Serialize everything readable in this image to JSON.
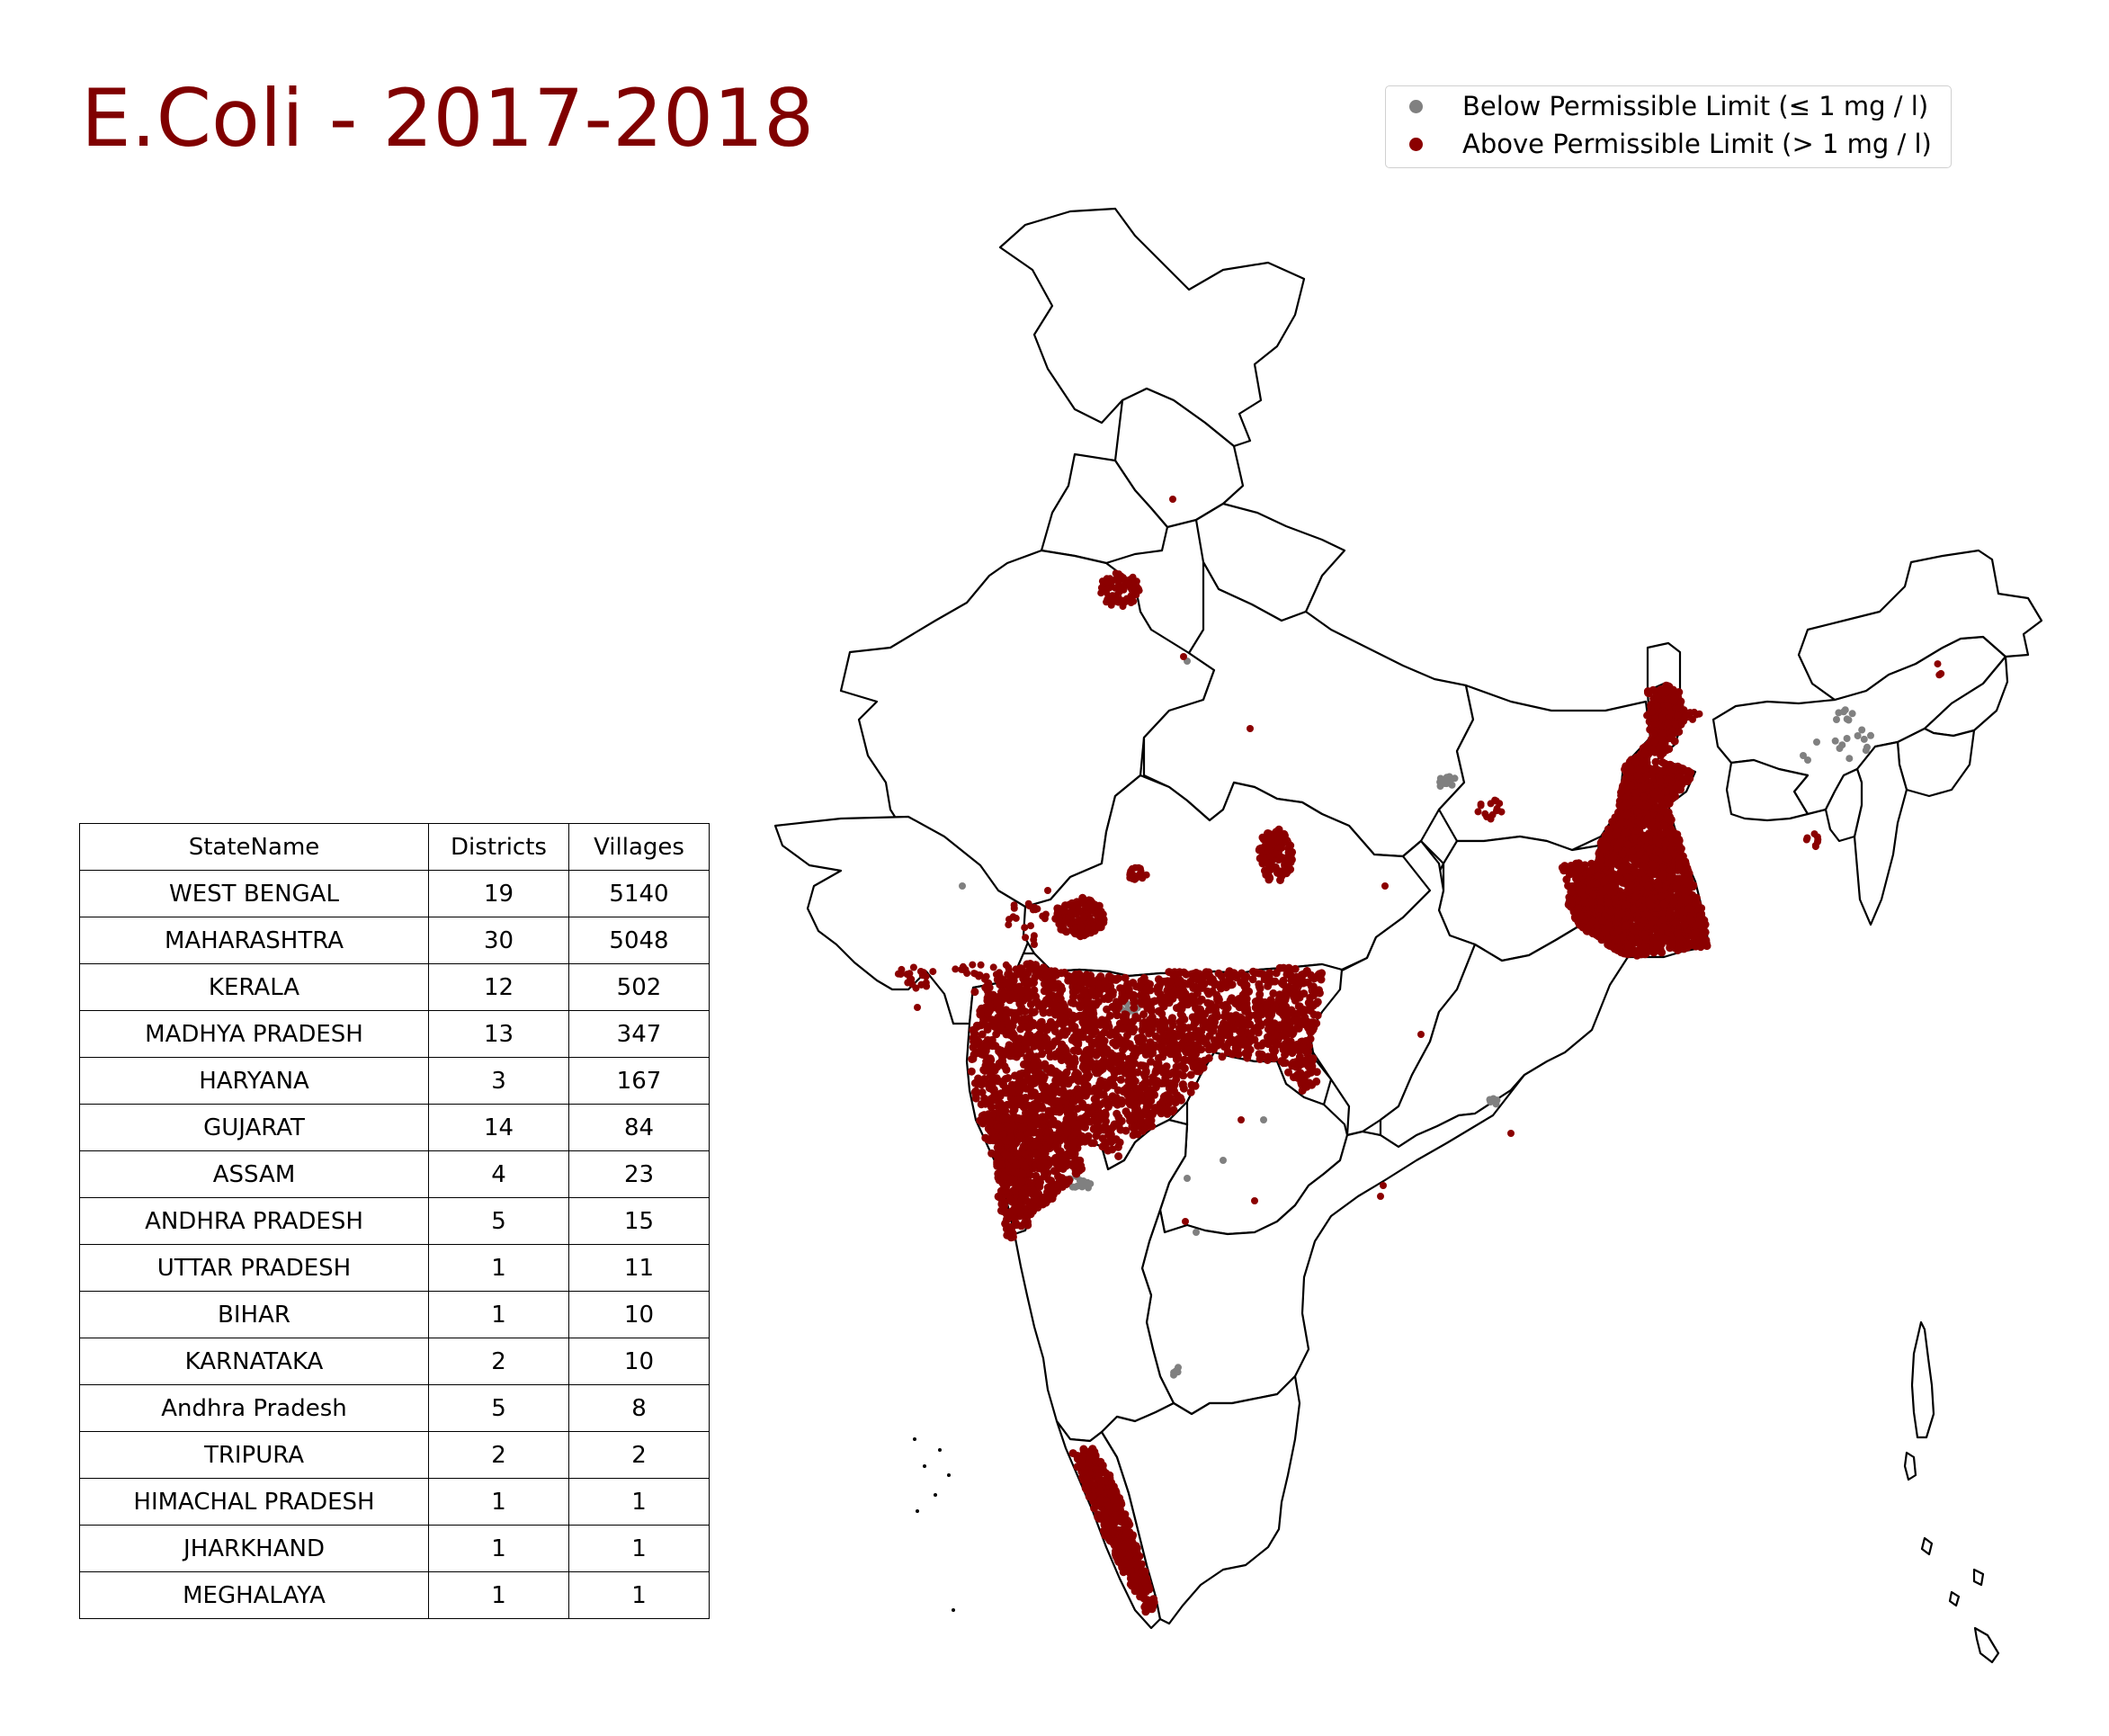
{
  "title": "E.Coli - 2017-2018",
  "colors": {
    "title": "#800000",
    "above": "#8b0000",
    "below": "#808080",
    "outline": "#000000"
  },
  "legend": {
    "items": [
      {
        "label": "Below Permissible Limit (≤ 1 mg / l)",
        "color": "#808080"
      },
      {
        "label": "Above Permissible Limit (> 1 mg / l)",
        "color": "#8b0000"
      }
    ]
  },
  "table": {
    "headers": [
      "StateName",
      "Districts",
      "Villages"
    ],
    "rows": [
      {
        "state": "WEST BENGAL",
        "districts": "19",
        "villages": "5140"
      },
      {
        "state": "MAHARASHTRA",
        "districts": "30",
        "villages": "5048"
      },
      {
        "state": "KERALA",
        "districts": "12",
        "villages": "502"
      },
      {
        "state": "MADHYA PRADESH",
        "districts": "13",
        "villages": "347"
      },
      {
        "state": "HARYANA",
        "districts": "3",
        "villages": "167"
      },
      {
        "state": "GUJARAT",
        "districts": "14",
        "villages": "84"
      },
      {
        "state": "ASSAM",
        "districts": "4",
        "villages": "23"
      },
      {
        "state": "ANDHRA PRADESH",
        "districts": "5",
        "villages": "15"
      },
      {
        "state": "UTTAR PRADESH",
        "districts": "1",
        "villages": "11"
      },
      {
        "state": "BIHAR",
        "districts": "1",
        "villages": "10"
      },
      {
        "state": "KARNATAKA",
        "districts": "2",
        "villages": "10"
      },
      {
        "state": "Andhra Pradesh",
        "districts": "5",
        "villages": "8"
      },
      {
        "state": "TRIPURA",
        "districts": "2",
        "villages": "2"
      },
      {
        "state": "HIMACHAL PRADESH",
        "districts": "1",
        "villages": "1"
      },
      {
        "state": "JHARKHAND",
        "districts": "1",
        "villages": "1"
      },
      {
        "state": "MEGHALAYA",
        "districts": "1",
        "villages": "1"
      }
    ]
  }
}
